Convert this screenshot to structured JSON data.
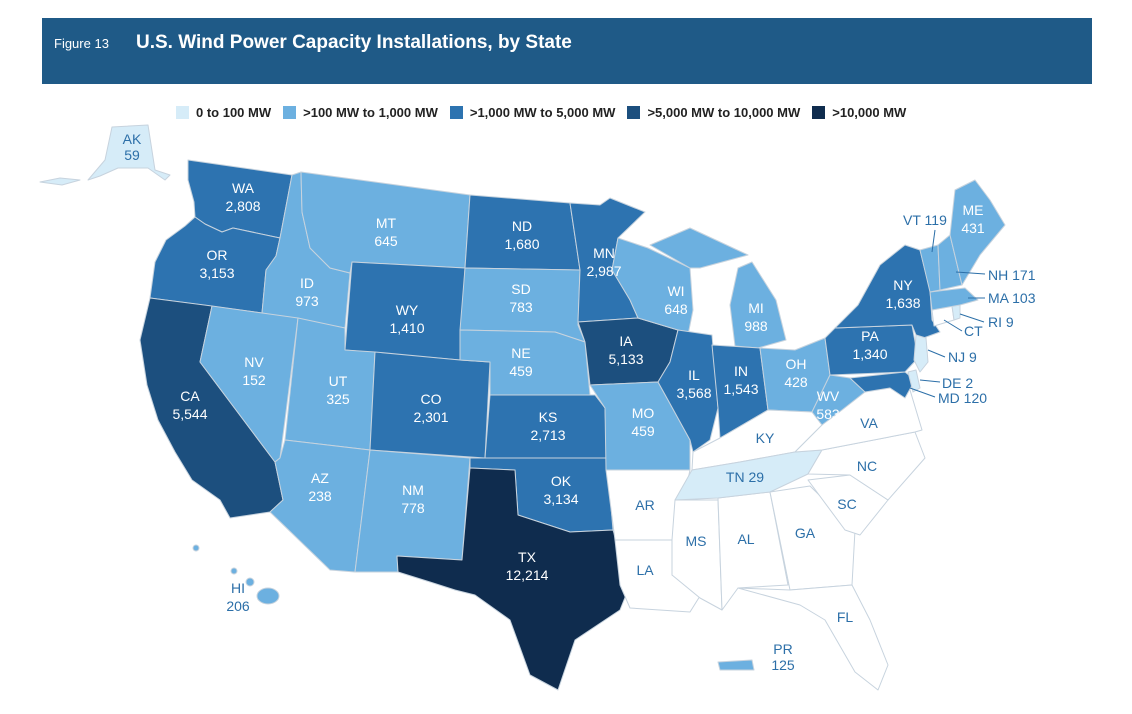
{
  "header": {
    "figure_label": "Figure 13",
    "title": "U.S. Wind Power Capacity Installations, by State"
  },
  "legend": [
    {
      "label": "0 to 100 MW",
      "color": "#d6ecf8"
    },
    {
      "label": ">100 MW to 1,000 MW",
      "color": "#6cb0e0"
    },
    {
      "label": ">1,000 MW to 5,000 MW",
      "color": "#2d73b0"
    },
    {
      "label": ">5,000 MW to 10,000 MW",
      "color": "#1c4f7e"
    },
    {
      "label": ">10,000 MW",
      "color": "#0f2c4e"
    }
  ],
  "colors": {
    "none": "#ffffff",
    "tier1": "#d6ecf8",
    "tier2": "#6cb0e0",
    "tier3": "#2d73b0",
    "tier4": "#1c4f7e",
    "tier5": "#0f2c4e",
    "label_dark": "#2c6fa8",
    "label_light": "#ffffff"
  },
  "states": {
    "AK": {
      "abbr": "AK",
      "value": "59"
    },
    "WA": {
      "abbr": "WA",
      "value": "2,808"
    },
    "OR": {
      "abbr": "OR",
      "value": "3,153"
    },
    "CA": {
      "abbr": "CA",
      "value": "5,544"
    },
    "ID": {
      "abbr": "ID",
      "value": "973"
    },
    "NV": {
      "abbr": "NV",
      "value": "152"
    },
    "MT": {
      "abbr": "MT",
      "value": "645"
    },
    "WY": {
      "abbr": "WY",
      "value": "1,410"
    },
    "UT": {
      "abbr": "UT",
      "value": "325"
    },
    "AZ": {
      "abbr": "AZ",
      "value": "238"
    },
    "CO": {
      "abbr": "CO",
      "value": "2,301"
    },
    "NM": {
      "abbr": "NM",
      "value": "778"
    },
    "ND": {
      "abbr": "ND",
      "value": "1,680"
    },
    "SD": {
      "abbr": "SD",
      "value": "783"
    },
    "NE": {
      "abbr": "NE",
      "value": "459"
    },
    "KS": {
      "abbr": "KS",
      "value": "2,713"
    },
    "OK": {
      "abbr": "OK",
      "value": "3,134"
    },
    "TX": {
      "abbr": "TX",
      "value": "12,214"
    },
    "MN": {
      "abbr": "MN",
      "value": "2,987"
    },
    "IA": {
      "abbr": "IA",
      "value": "5,133"
    },
    "MO": {
      "abbr": "MO",
      "value": "459"
    },
    "WI": {
      "abbr": "WI",
      "value": "648"
    },
    "IL": {
      "abbr": "IL",
      "value": "3,568"
    },
    "MI": {
      "abbr": "MI",
      "value": "988"
    },
    "IN": {
      "abbr": "IN",
      "value": "1,543"
    },
    "OH": {
      "abbr": "OH",
      "value": "428"
    },
    "WV": {
      "abbr": "WV",
      "value": "583"
    },
    "PA": {
      "abbr": "PA",
      "value": "1,340"
    },
    "NY": {
      "abbr": "NY",
      "value": "1,638"
    },
    "ME": {
      "abbr": "ME",
      "value": "431"
    },
    "VT": {
      "abbr": "VT",
      "value": "119"
    },
    "NH": {
      "abbr": "NH",
      "value": "171"
    },
    "MA": {
      "abbr": "MA",
      "value": "103"
    },
    "RI": {
      "abbr": "RI",
      "value": "9"
    },
    "CT": {
      "abbr": "CT"
    },
    "NJ": {
      "abbr": "NJ",
      "value": "9"
    },
    "DE": {
      "abbr": "DE",
      "value": "2"
    },
    "MD": {
      "abbr": "MD",
      "value": "120"
    },
    "VA": {
      "abbr": "VA"
    },
    "KY": {
      "abbr": "KY"
    },
    "TN": {
      "abbr": "TN",
      "value": "29"
    },
    "NC": {
      "abbr": "NC"
    },
    "SC": {
      "abbr": "SC"
    },
    "GA": {
      "abbr": "GA"
    },
    "AL": {
      "abbr": "AL"
    },
    "MS": {
      "abbr": "MS"
    },
    "AR": {
      "abbr": "AR"
    },
    "LA": {
      "abbr": "LA"
    },
    "FL": {
      "abbr": "FL"
    },
    "HI": {
      "abbr": "HI",
      "value": "206"
    },
    "PR": {
      "abbr": "PR",
      "value": "125"
    }
  }
}
